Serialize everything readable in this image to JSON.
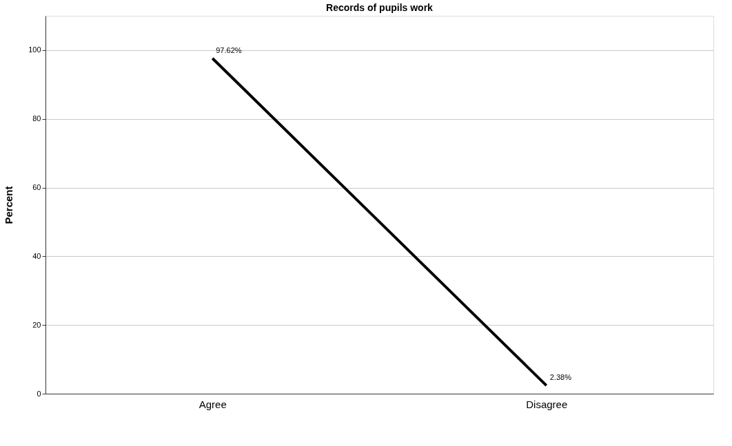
{
  "chart_data": {
    "type": "line",
    "title": "Records of pupils work",
    "ylabel": "Percent",
    "categories": [
      "Agree",
      "Disagree"
    ],
    "series": [
      {
        "color": "#000000",
        "values": [
          97.62,
          2.38
        ],
        "value_labels": [
          "97.62%",
          "2.38%"
        ]
      }
    ],
    "ylim": [
      0,
      110
    ],
    "yticks": [
      0,
      20,
      40,
      60,
      80,
      100
    ],
    "grid": "y",
    "line_style": "solid",
    "legend": false
  }
}
